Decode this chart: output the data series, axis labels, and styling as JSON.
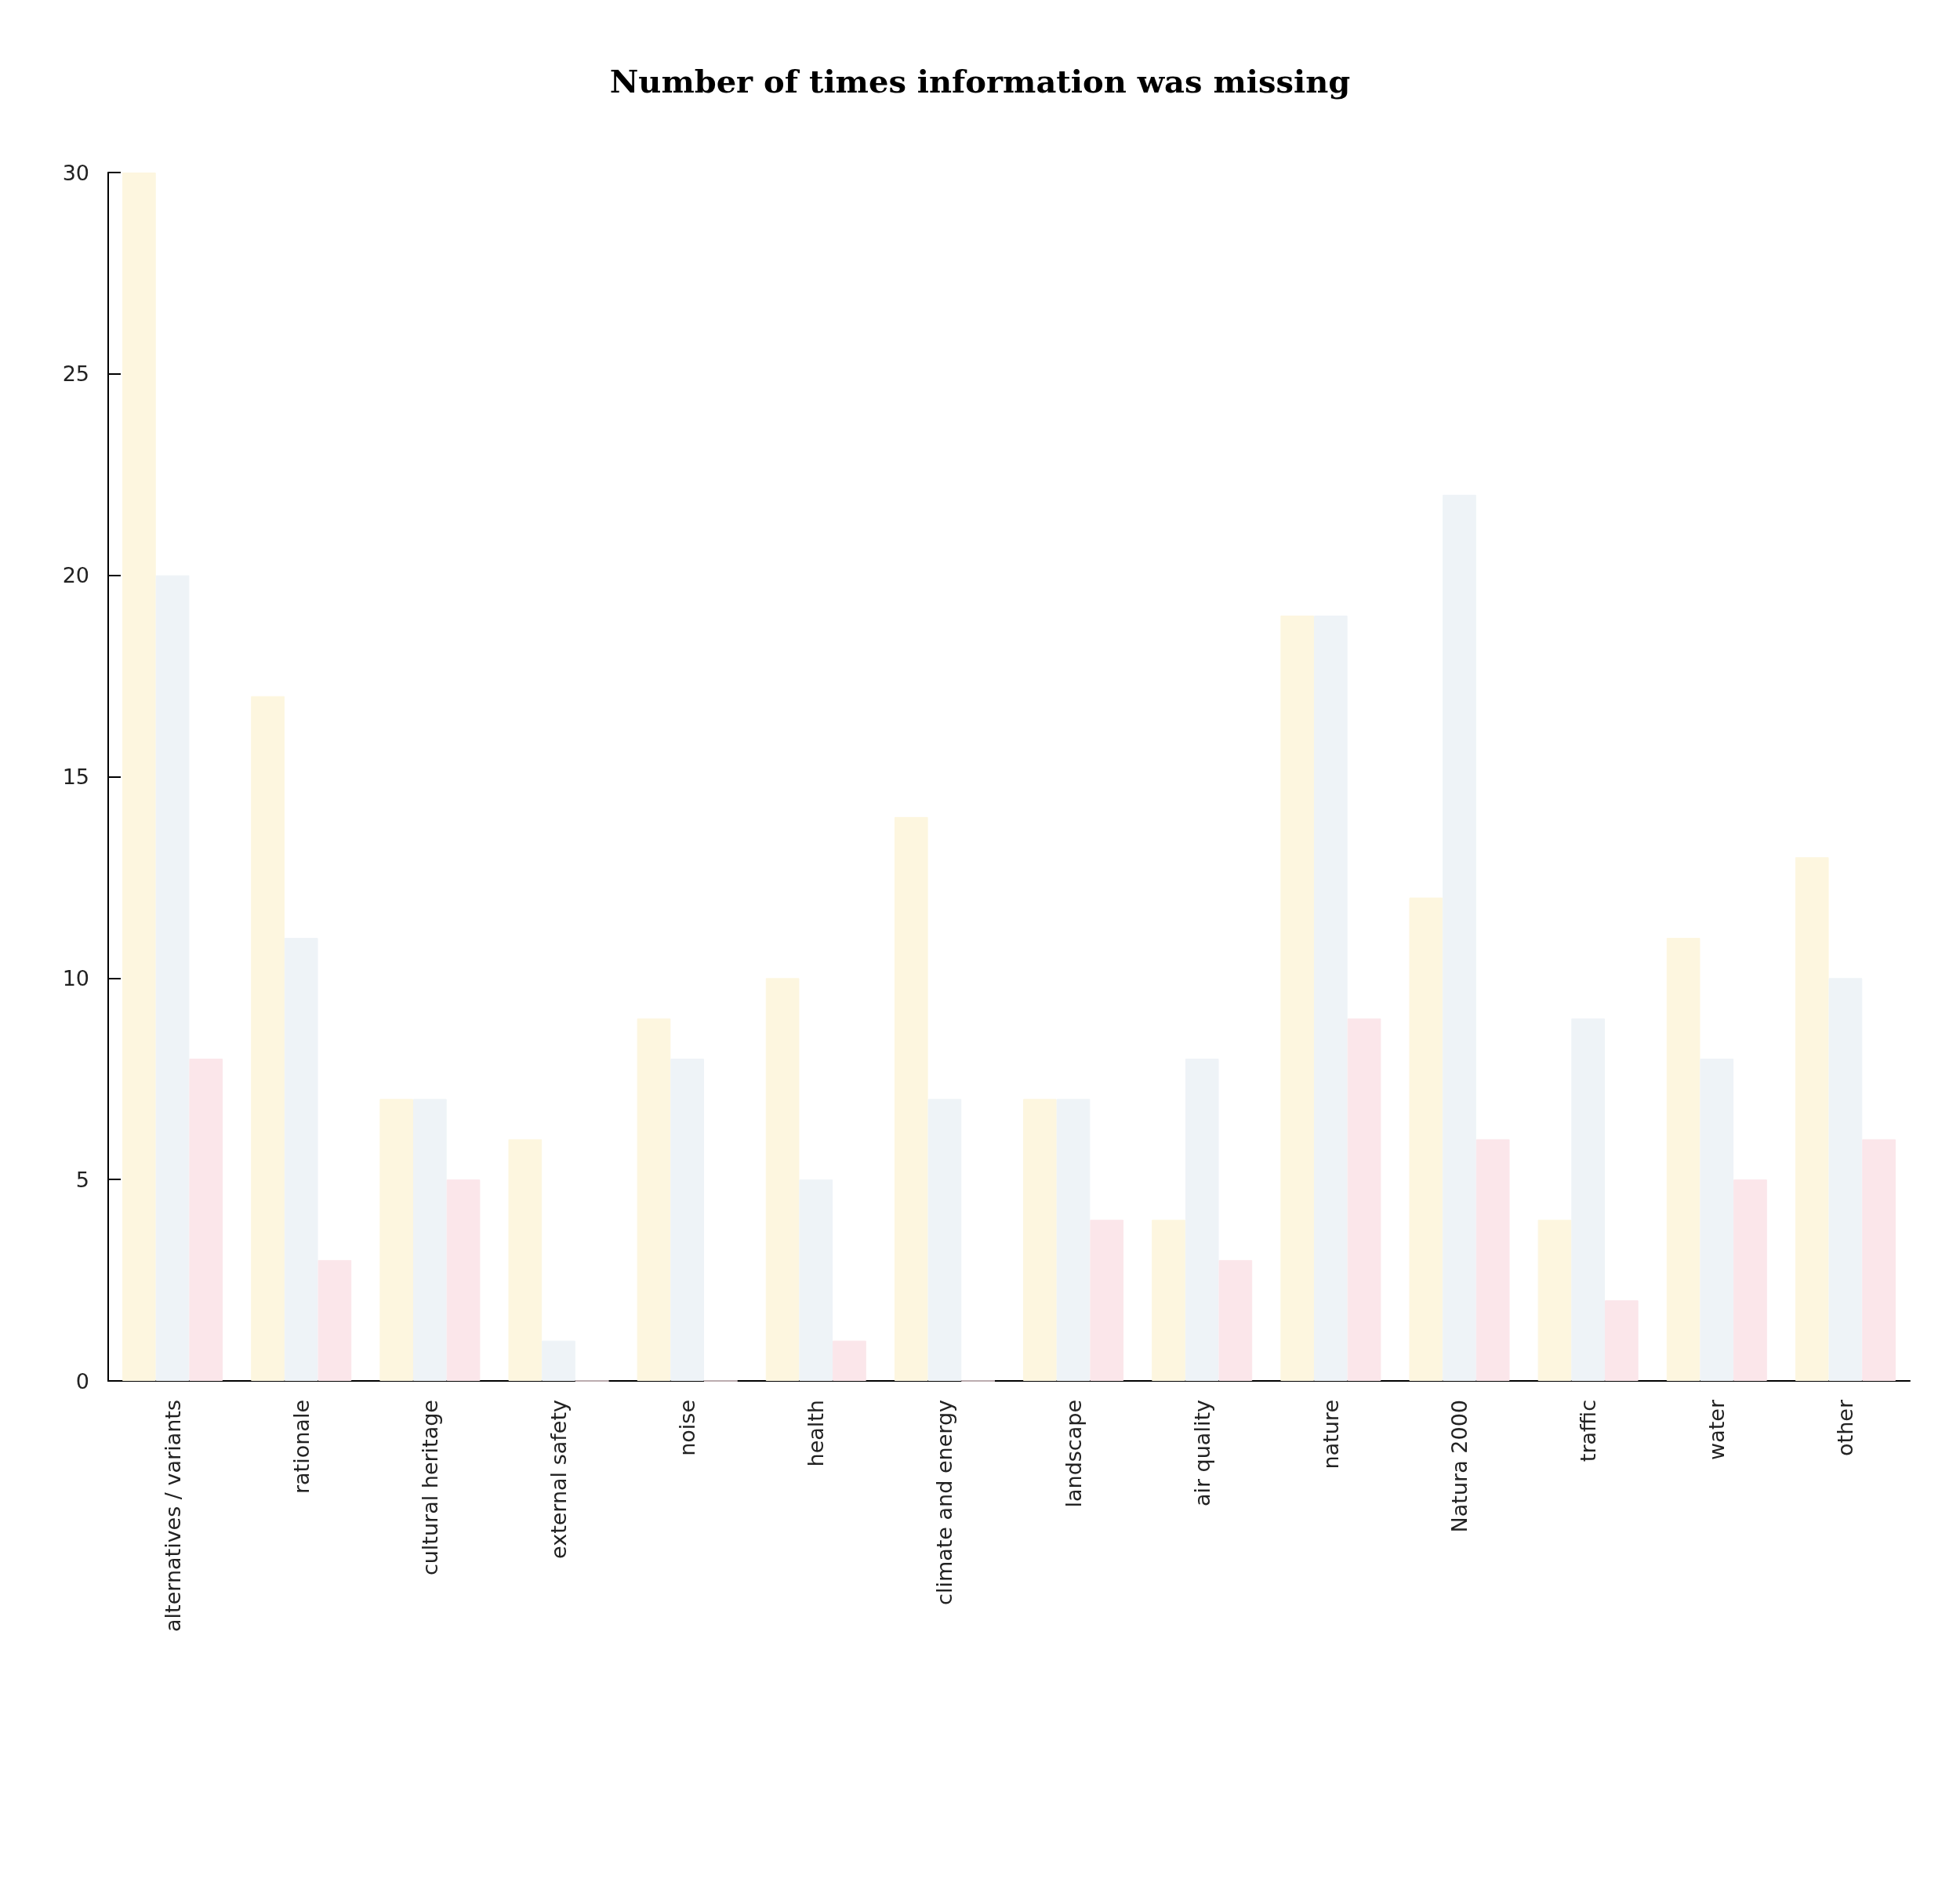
{
  "chart_data": {
    "type": "bar",
    "title": "Number of times information was missing",
    "categories": [
      "alternatives / variants",
      "rationale",
      "cultural heritage",
      "external safety",
      "noise",
      "health",
      "climate and energy",
      "landscape",
      "air quality",
      "nature",
      "Natura 2000",
      "traffic",
      "water",
      "other"
    ],
    "series": [
      {
        "color": "#fdf6df",
        "values": [
          30,
          17,
          7,
          6,
          9,
          10,
          14,
          7,
          4,
          19,
          12,
          4,
          11,
          13
        ]
      },
      {
        "color": "#eef3f7",
        "values": [
          20,
          11,
          7,
          1,
          8,
          5,
          7,
          7,
          8,
          19,
          22,
          9,
          8,
          10
        ]
      },
      {
        "color": "#fbe6ea",
        "values": [
          8,
          3,
          5,
          0,
          0,
          1,
          0,
          4,
          3,
          9,
          6,
          2,
          5,
          6
        ]
      }
    ],
    "ylim": [
      0,
      30
    ],
    "yticks": [
      0,
      5,
      10,
      15,
      20,
      25,
      30
    ],
    "grid": false
  }
}
